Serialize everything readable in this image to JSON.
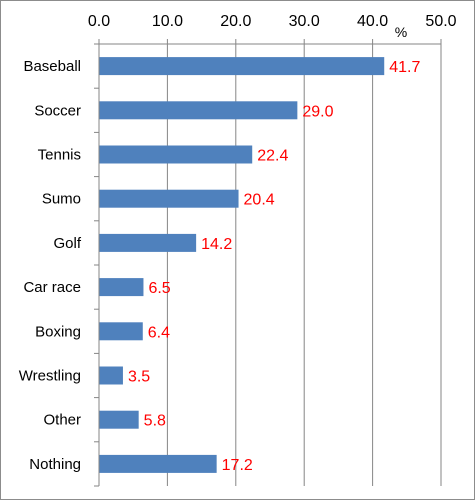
{
  "chart_data": {
    "type": "bar",
    "orientation": "horizontal",
    "categories": [
      "Baseball",
      "Soccer",
      "Tennis",
      "Sumo",
      "Golf",
      "Car race",
      "Boxing",
      "Wrestling",
      "Other",
      "Nothing"
    ],
    "values": [
      41.7,
      29.0,
      22.4,
      20.4,
      14.2,
      6.5,
      6.4,
      3.5,
      5.8,
      17.2
    ],
    "value_labels": [
      "41.7",
      "29.0",
      "22.4",
      "20.4",
      "14.2",
      "6.5",
      "6.4",
      "3.5",
      "5.8",
      "17.2"
    ],
    "x_ticks": [
      "0.0",
      "10.0",
      "20.0",
      "30.0",
      "40.0",
      "50.0"
    ],
    "xlim": [
      0,
      50
    ],
    "unit": "%",
    "axis_position": "top",
    "grid": true,
    "legend": false,
    "colors": {
      "bar": "#4f81bd",
      "data_label": "#ff0000",
      "grid": "#868686",
      "axis": "#868686"
    }
  }
}
